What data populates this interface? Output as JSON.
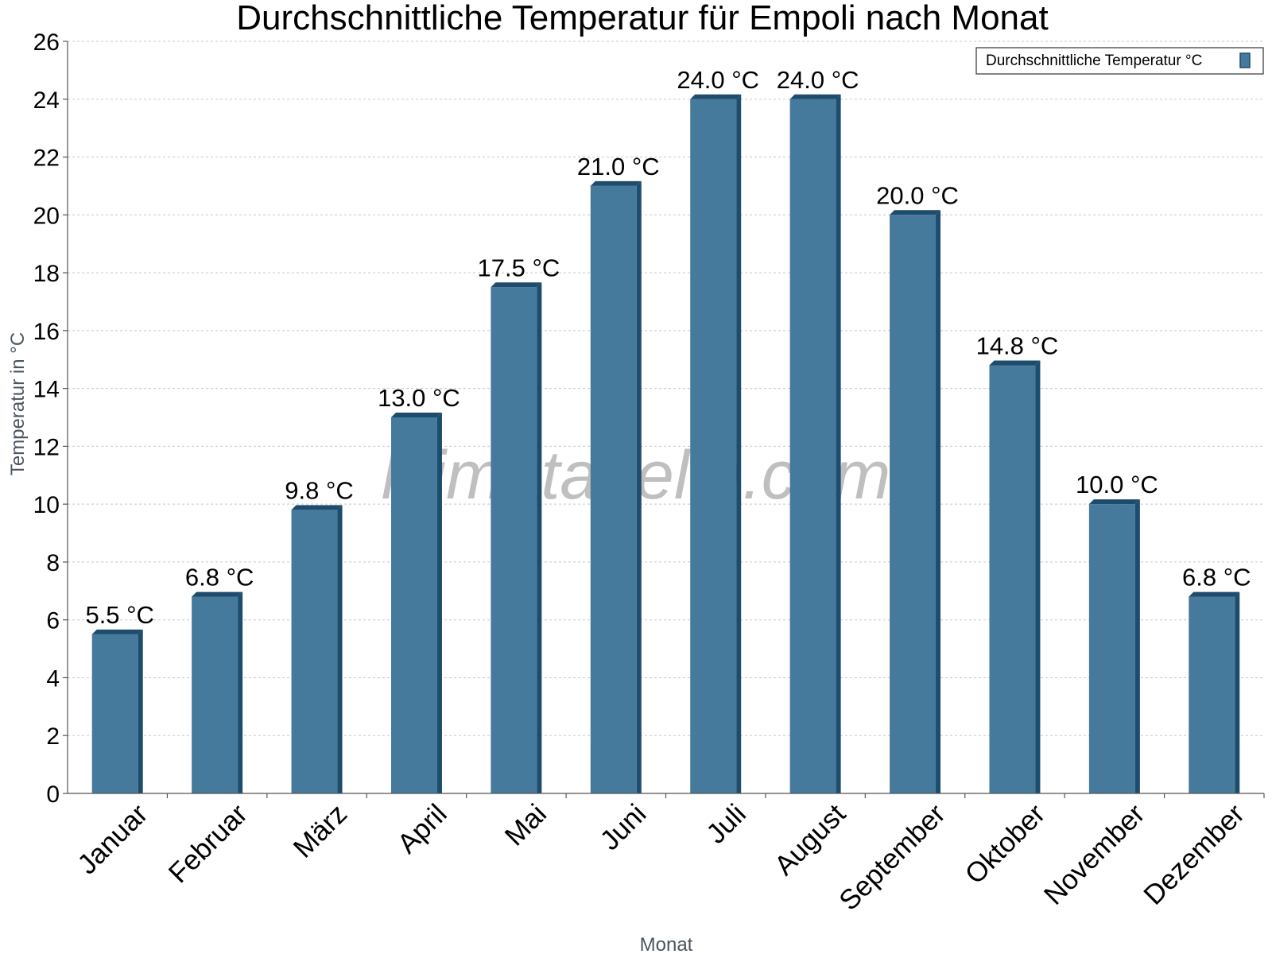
{
  "chart_data": {
    "type": "bar",
    "title": "Durchschnittliche Temperatur für Empoli nach Monat",
    "xlabel": "Monat",
    "ylabel": "Temperatur in °C",
    "categories": [
      "Januar",
      "Februar",
      "März",
      "April",
      "Mai",
      "Juni",
      "Juli",
      "August",
      "September",
      "Oktober",
      "November",
      "Dezember"
    ],
    "series": [
      {
        "name": "Durchschnittliche Temperatur °C",
        "values": [
          5.5,
          6.8,
          9.8,
          13.0,
          17.5,
          21.0,
          24.0,
          24.0,
          20.0,
          14.8,
          10.0,
          6.8
        ],
        "labels": [
          "5.5 °C",
          "6.8 °C",
          "9.8 °C",
          "13.0 °C",
          "17.5 °C",
          "21.0 °C",
          "24.0 °C",
          "24.0 °C",
          "20.0 °C",
          "14.8 °C",
          "10.0 °C",
          "6.8 °C"
        ]
      }
    ],
    "ylim": [
      0,
      26
    ],
    "yticks": [
      0,
      2,
      4,
      6,
      8,
      10,
      12,
      14,
      16,
      18,
      20,
      22,
      24,
      26
    ],
    "grid": true,
    "legend_position": "top-right",
    "colors": {
      "bar": "#467a9c",
      "bar_side": "#1d4c6d",
      "grid": "#c8c8c8",
      "axis": "#555555"
    }
  },
  "watermark": "klimatabelle.com"
}
